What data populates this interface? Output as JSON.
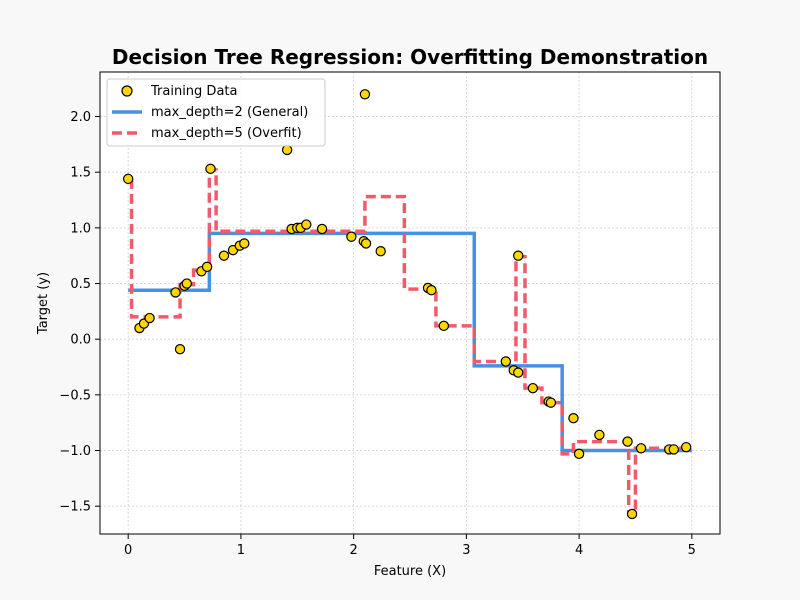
{
  "chart_data": {
    "type": "scatter",
    "title": "Decision Tree Regression: Overfitting Demonstration",
    "xlabel": "Feature (X)",
    "ylabel": "Target (y)",
    "xlim": [
      -0.25,
      5.25
    ],
    "ylim": [
      -1.75,
      2.4
    ],
    "xticks": [
      0,
      1,
      2,
      3,
      4,
      5
    ],
    "yticks": [
      -1.5,
      -1.0,
      -0.5,
      0.0,
      0.5,
      1.0,
      1.5,
      2.0
    ],
    "xtick_labels": [
      "0",
      "1",
      "2",
      "3",
      "4",
      "5"
    ],
    "ytick_labels": [
      "−1.5",
      "−1.0",
      "−0.5",
      "0.0",
      "0.5",
      "1.0",
      "1.5",
      "2.0"
    ],
    "grid": true,
    "legend_position": "top-left",
    "series": [
      {
        "name": "Training Data",
        "type": "scatter",
        "color": "#FFD700",
        "edge_color": "#000000",
        "points": [
          [
            0.0,
            1.44
          ],
          [
            0.1,
            0.1
          ],
          [
            0.14,
            0.14
          ],
          [
            0.19,
            0.19
          ],
          [
            0.42,
            0.42
          ],
          [
            0.46,
            -0.09
          ],
          [
            0.5,
            0.48
          ],
          [
            0.52,
            0.5
          ],
          [
            0.65,
            0.61
          ],
          [
            0.7,
            0.65
          ],
          [
            0.73,
            1.53
          ],
          [
            0.85,
            0.75
          ],
          [
            0.93,
            0.8
          ],
          [
            0.99,
            0.84
          ],
          [
            1.03,
            0.86
          ],
          [
            1.41,
            1.7
          ],
          [
            1.45,
            0.99
          ],
          [
            1.5,
            1.0
          ],
          [
            1.53,
            1.0
          ],
          [
            1.58,
            1.03
          ],
          [
            1.72,
            0.99
          ],
          [
            1.98,
            0.92
          ],
          [
            2.09,
            0.88
          ],
          [
            2.1,
            2.2
          ],
          [
            2.11,
            0.86
          ],
          [
            2.24,
            0.79
          ],
          [
            2.66,
            0.46
          ],
          [
            2.69,
            0.44
          ],
          [
            2.8,
            0.12
          ],
          [
            3.35,
            -0.2
          ],
          [
            3.42,
            -0.28
          ],
          [
            3.46,
            -0.3
          ],
          [
            3.46,
            0.75
          ],
          [
            3.59,
            -0.44
          ],
          [
            3.73,
            -0.56
          ],
          [
            3.75,
            -0.57
          ],
          [
            3.95,
            -0.71
          ],
          [
            4.0,
            -1.03
          ],
          [
            4.18,
            -0.86
          ],
          [
            4.43,
            -0.92
          ],
          [
            4.47,
            -1.57
          ],
          [
            4.55,
            -0.98
          ],
          [
            4.8,
            -0.99
          ],
          [
            4.84,
            -0.99
          ],
          [
            4.95,
            -0.97
          ]
        ]
      },
      {
        "name": "max_depth=2 (General)",
        "type": "step",
        "color": "#4A90E2",
        "line_style": "solid",
        "x": [
          0.0,
          0.72,
          0.72,
          3.07,
          3.07,
          3.85,
          3.85,
          5.0
        ],
        "y": [
          0.44,
          0.44,
          0.95,
          0.95,
          -0.24,
          -0.24,
          -1.0,
          -1.0
        ]
      },
      {
        "name": "max_depth=5 (Overfit)",
        "type": "step",
        "color": "#F05A6A",
        "line_style": "dashed",
        "x": [
          0.03,
          0.03,
          0.46,
          0.46,
          0.58,
          0.58,
          0.72,
          0.72,
          0.78,
          0.78,
          2.1,
          2.1,
          2.45,
          2.45,
          2.73,
          2.73,
          3.07,
          3.07,
          3.44,
          3.44,
          3.52,
          3.52,
          3.67,
          3.67,
          3.85,
          3.85,
          3.95,
          3.95,
          4.44,
          4.44,
          4.5,
          4.5,
          4.95
        ],
        "y": [
          1.44,
          0.2,
          0.2,
          0.49,
          0.49,
          0.62,
          0.62,
          1.52,
          1.52,
          0.97,
          0.97,
          1.28,
          1.28,
          0.45,
          0.45,
          0.12,
          0.12,
          -0.2,
          -0.2,
          0.74,
          0.74,
          -0.44,
          -0.44,
          -0.57,
          -0.57,
          -1.03,
          -1.03,
          -0.92,
          -0.92,
          -1.57,
          -1.57,
          -0.98,
          -0.98
        ]
      }
    ]
  }
}
